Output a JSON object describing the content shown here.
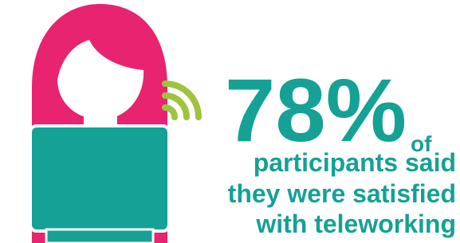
{
  "headline": {
    "figure": "78%",
    "connector": "of"
  },
  "lines": [
    "participants said",
    "they were satisfied",
    "with teleworking"
  ]
}
